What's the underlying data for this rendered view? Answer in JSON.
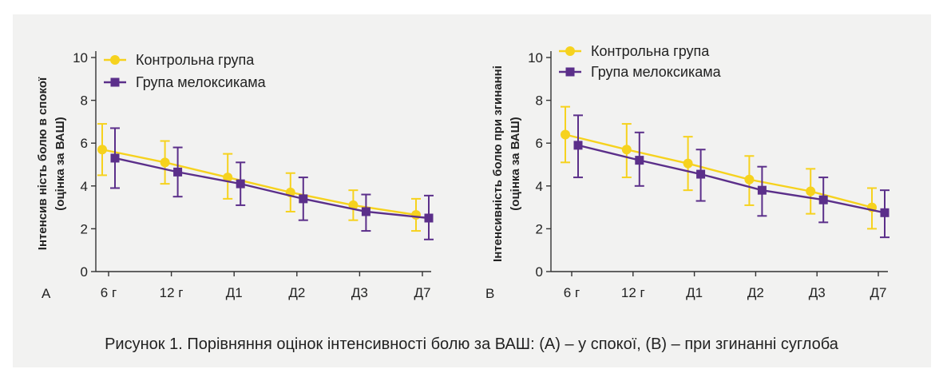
{
  "caption": "Рисунок 1. Порівняння оцінок інтенсивності болю за ВАШ: (А) – у спокої, (В) – при згинанні суглоба",
  "colors": {
    "control": "#f6d21e",
    "meloxicam": "#5b2f8a",
    "axis": "#333333",
    "background": "#f2f2f1"
  },
  "chart_data": [
    {
      "type": "line",
      "panel_label": "A",
      "ylabel_lines": [
        "Інтенсив ніcть болю в спокої",
        "(оцінка за ВАШ)"
      ],
      "categories": [
        "6 г",
        "12 г",
        "Д1",
        "Д2",
        "Д3",
        "Д7"
      ],
      "ylim": [
        0,
        10
      ],
      "yticks": [
        0,
        2,
        4,
        6,
        8,
        10
      ],
      "legend": "top-left",
      "series": [
        {
          "name": "Контрольна група",
          "marker": "circle",
          "values": [
            5.7,
            5.1,
            4.4,
            3.7,
            3.1,
            2.65
          ],
          "err_low": [
            4.5,
            4.1,
            3.4,
            2.8,
            2.4,
            1.9
          ],
          "err_high": [
            6.9,
            6.1,
            5.5,
            4.6,
            3.8,
            3.4
          ]
        },
        {
          "name": "Група мелоксикама",
          "marker": "square",
          "values": [
            5.3,
            4.65,
            4.1,
            3.4,
            2.8,
            2.5
          ],
          "err_low": [
            3.9,
            3.5,
            3.1,
            2.4,
            1.9,
            1.5
          ],
          "err_high": [
            6.7,
            5.8,
            5.1,
            4.4,
            3.6,
            3.55
          ]
        }
      ]
    },
    {
      "type": "line",
      "panel_label": "B",
      "ylabel_lines": [
        "Інтенсивність болю при згинанні",
        "(оцінка за ВАШ)"
      ],
      "categories": [
        "6 г",
        "12 г",
        "Д1",
        "Д2",
        "Д3",
        "Д7"
      ],
      "ylim": [
        0,
        10
      ],
      "yticks": [
        0,
        2,
        4,
        6,
        8,
        10
      ],
      "legend": "top-left",
      "series": [
        {
          "name": "Контрольна група",
          "marker": "circle",
          "values": [
            6.4,
            5.7,
            5.05,
            4.3,
            3.75,
            3.0
          ],
          "err_low": [
            5.1,
            4.4,
            3.8,
            3.1,
            2.7,
            2.0
          ],
          "err_high": [
            7.7,
            6.9,
            6.3,
            5.4,
            4.8,
            3.9
          ]
        },
        {
          "name": "Група мелоксикама",
          "marker": "square",
          "values": [
            5.9,
            5.2,
            4.55,
            3.8,
            3.35,
            2.75
          ],
          "err_low": [
            4.4,
            4.0,
            3.3,
            2.6,
            2.3,
            1.6
          ],
          "err_high": [
            7.3,
            6.5,
            5.7,
            4.9,
            4.4,
            3.8
          ]
        }
      ]
    }
  ]
}
